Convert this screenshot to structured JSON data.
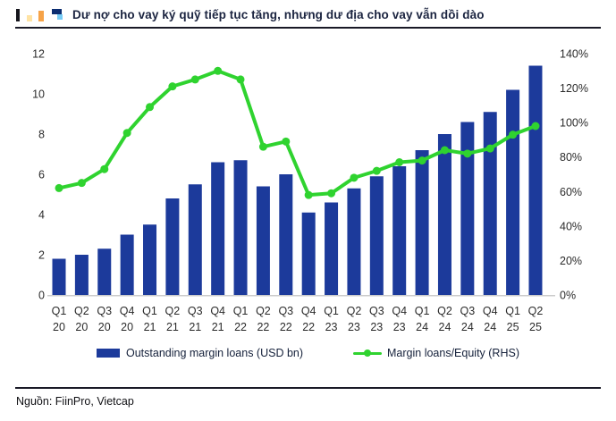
{
  "header": {
    "title": "Dư nợ cho vay ký quỹ tiếp tục tăng, nhưng dư địa cho vay vẫn dồi dào"
  },
  "legend": {
    "bars_label": "Outstanding margin loans (USD bn)",
    "line_label": "Margin loans/Equity (RHS)"
  },
  "footer": {
    "source": "Nguồn: FiinPro, Vietcap"
  },
  "colors": {
    "bar": "#1c3a9b",
    "line": "#2fd32f",
    "axis_line": "#cccccc",
    "tick_text": "#2b2b2b",
    "title_text": "#1b2440"
  },
  "chart_data": {
    "type": "bar",
    "subtype": "combo-bar-line",
    "title": "Dư nợ cho vay ký quỹ tiếp tục tăng, nhưng dư địa cho vay vẫn dồi dào",
    "categories": [
      "Q1 20",
      "Q2 20",
      "Q3 20",
      "Q4 20",
      "Q1 21",
      "Q2 21",
      "Q3 21",
      "Q4 21",
      "Q1 22",
      "Q2 22",
      "Q3 22",
      "Q4 22",
      "Q1 23",
      "Q2 23",
      "Q3 23",
      "Q4 23",
      "Q1 24",
      "Q2 24",
      "Q3 24",
      "Q4 24",
      "Q1 25",
      "Q2 25"
    ],
    "series": [
      {
        "name": "Outstanding margin loans (USD bn)",
        "type": "bar",
        "axis": "left",
        "values": [
          1.8,
          2.0,
          2.3,
          3.0,
          3.5,
          4.8,
          5.5,
          6.6,
          6.7,
          5.4,
          6.0,
          4.1,
          4.6,
          5.3,
          5.9,
          6.4,
          7.2,
          8.0,
          8.6,
          9.1,
          10.2,
          11.4
        ]
      },
      {
        "name": "Margin loans/Equity (RHS)",
        "type": "line",
        "axis": "right",
        "values": [
          62,
          65,
          73,
          94,
          109,
          121,
          125,
          130,
          125,
          86,
          89,
          58,
          59,
          68,
          72,
          77,
          78,
          84,
          82,
          85,
          93,
          98
        ]
      }
    ],
    "left_axis": {
      "label": "",
      "ticks": [
        0,
        2,
        4,
        6,
        8,
        10,
        12
      ],
      "range": [
        0,
        12
      ]
    },
    "right_axis": {
      "label": "",
      "ticks": [
        "0%",
        "20%",
        "40%",
        "60%",
        "80%",
        "100%",
        "120%",
        "140%"
      ],
      "tick_values": [
        0,
        20,
        40,
        60,
        80,
        100,
        120,
        140
      ],
      "range": [
        0,
        140
      ]
    },
    "grid": false,
    "legend_position": "bottom",
    "source": "Nguồn: FiinPro, Vietcap"
  }
}
